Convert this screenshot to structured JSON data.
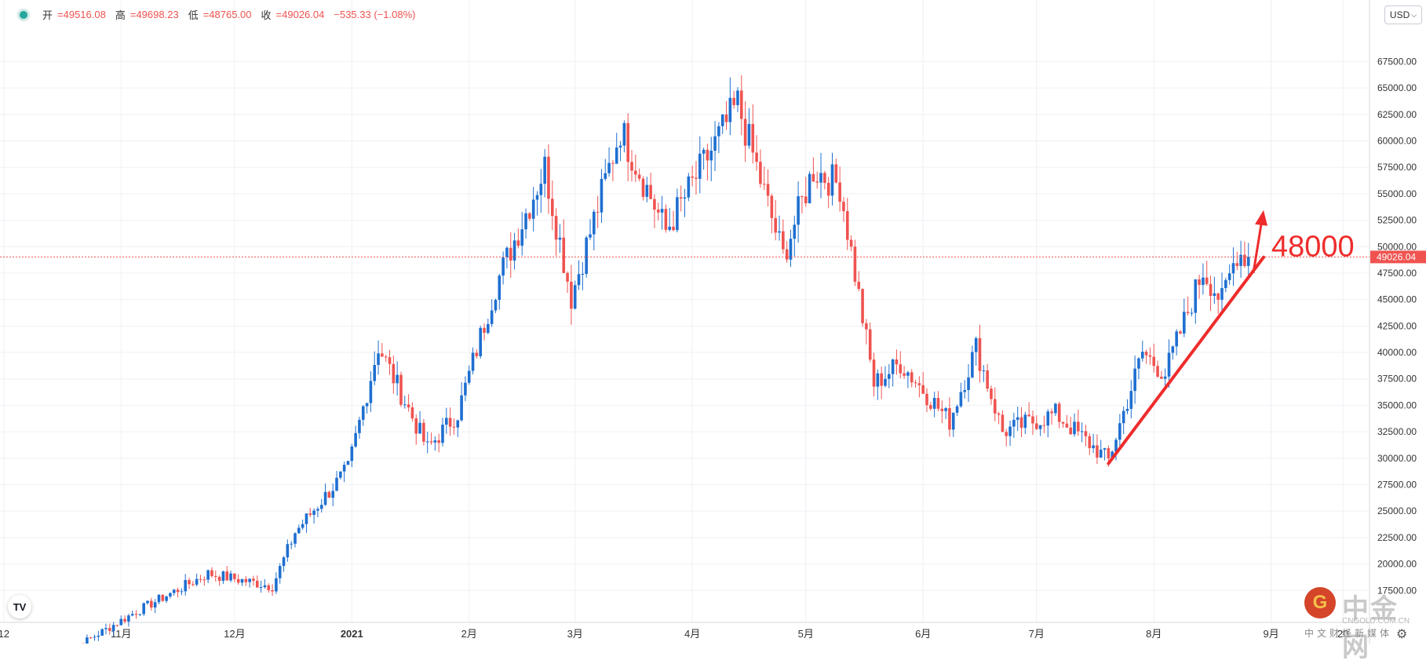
{
  "header": {
    "open_label": "开",
    "open_value": "=49516.08",
    "high_label": "高",
    "high_value": "=49698.23",
    "low_label": "低",
    "low_value": "=48765.00",
    "close_label": "收",
    "close_value": "=49026.04",
    "change": "−535.33 (−1.08%)"
  },
  "currency": "USD",
  "currency_icon": "chevron-down-icon",
  "watermark": {
    "logo_glyph": "G",
    "name": "中金网",
    "site": "CNGOLD.COM.CN",
    "subtitle": "中文财经新媒体"
  },
  "tv_logo": "TV",
  "colors": {
    "up": "#1e6fd0",
    "down": "#ef5350",
    "annotation": "#ee2c2c",
    "price_tag": "#ef5350"
  },
  "chart_data": {
    "type": "candlestick",
    "y_axis_side": "right",
    "ylim": [
      15000,
      72500
    ],
    "yticks": [
      "17500.00",
      "20000.00",
      "22500.00",
      "25000.00",
      "27500.00",
      "30000.00",
      "32500.00",
      "35000.00",
      "37500.00",
      "40000.00",
      "42500.00",
      "45000.00",
      "47500.00",
      "50000.00",
      "52500.00",
      "55000.00",
      "57500.00",
      "60000.00",
      "62500.00",
      "65000.00",
      "67500.00"
    ],
    "xticks": [
      {
        "label": "12",
        "date": "2020-10-01"
      },
      {
        "label": "11月",
        "date": "2020-11-01"
      },
      {
        "label": "12月",
        "date": "2020-12-01"
      },
      {
        "label": "2021",
        "date": "2021-01-01"
      },
      {
        "label": "2月",
        "date": "2021-02-01"
      },
      {
        "label": "3月",
        "date": "2021-03-01"
      },
      {
        "label": "4月",
        "date": "2021-04-01"
      },
      {
        "label": "5月",
        "date": "2021-05-01"
      },
      {
        "label": "6月",
        "date": "2021-06-01"
      },
      {
        "label": "7月",
        "date": "2021-07-01"
      },
      {
        "label": "8月",
        "date": "2021-08-01"
      },
      {
        "label": "9月",
        "date": "2021-09-01"
      },
      {
        "label": "20",
        "date": "2021-09-20"
      }
    ],
    "x_range": [
      "2020-09-30",
      "2021-09-27"
    ],
    "grid": true,
    "current_price": 49026.04,
    "current_price_label": "49026.04",
    "key_points": [
      {
        "date": "2020-10-16",
        "price": 11300
      },
      {
        "date": "2020-11-05",
        "price": 15500
      },
      {
        "date": "2020-11-24",
        "price": 19100
      },
      {
        "date": "2020-12-11",
        "price": 17900
      },
      {
        "date": "2020-12-17",
        "price": 23000
      },
      {
        "date": "2020-12-31",
        "price": 29000
      },
      {
        "date": "2021-01-08",
        "price": 40600
      },
      {
        "date": "2021-01-21",
        "price": 30900
      },
      {
        "date": "2021-01-29",
        "price": 34300
      },
      {
        "date": "2021-02-08",
        "price": 46300
      },
      {
        "date": "2021-02-21",
        "price": 57500
      },
      {
        "date": "2021-02-28",
        "price": 45200
      },
      {
        "date": "2021-03-13",
        "price": 61100
      },
      {
        "date": "2021-03-25",
        "price": 51500
      },
      {
        "date": "2021-04-13",
        "price": 63500
      },
      {
        "date": "2021-04-25",
        "price": 49100
      },
      {
        "date": "2021-05-03",
        "price": 57300
      },
      {
        "date": "2021-05-10",
        "price": 55800
      },
      {
        "date": "2021-05-19",
        "price": 37000
      },
      {
        "date": "2021-05-26",
        "price": 39000
      },
      {
        "date": "2021-06-08",
        "price": 33500
      },
      {
        "date": "2021-06-15",
        "price": 40500
      },
      {
        "date": "2021-06-22",
        "price": 32500
      },
      {
        "date": "2021-07-06",
        "price": 34200
      },
      {
        "date": "2021-07-20",
        "price": 29800
      },
      {
        "date": "2021-07-29",
        "price": 40000
      },
      {
        "date": "2021-08-04",
        "price": 38000
      },
      {
        "date": "2021-08-14",
        "price": 47800
      },
      {
        "date": "2021-08-19",
        "price": 44800
      },
      {
        "date": "2021-08-23",
        "price": 49500
      },
      {
        "date": "2021-08-26",
        "price": 49026
      }
    ],
    "annotation": {
      "label": "48000",
      "trend_from": {
        "date": "2021-07-20",
        "price": 29500
      },
      "trend_to": {
        "date": "2021-08-30",
        "price": 49000
      }
    }
  }
}
